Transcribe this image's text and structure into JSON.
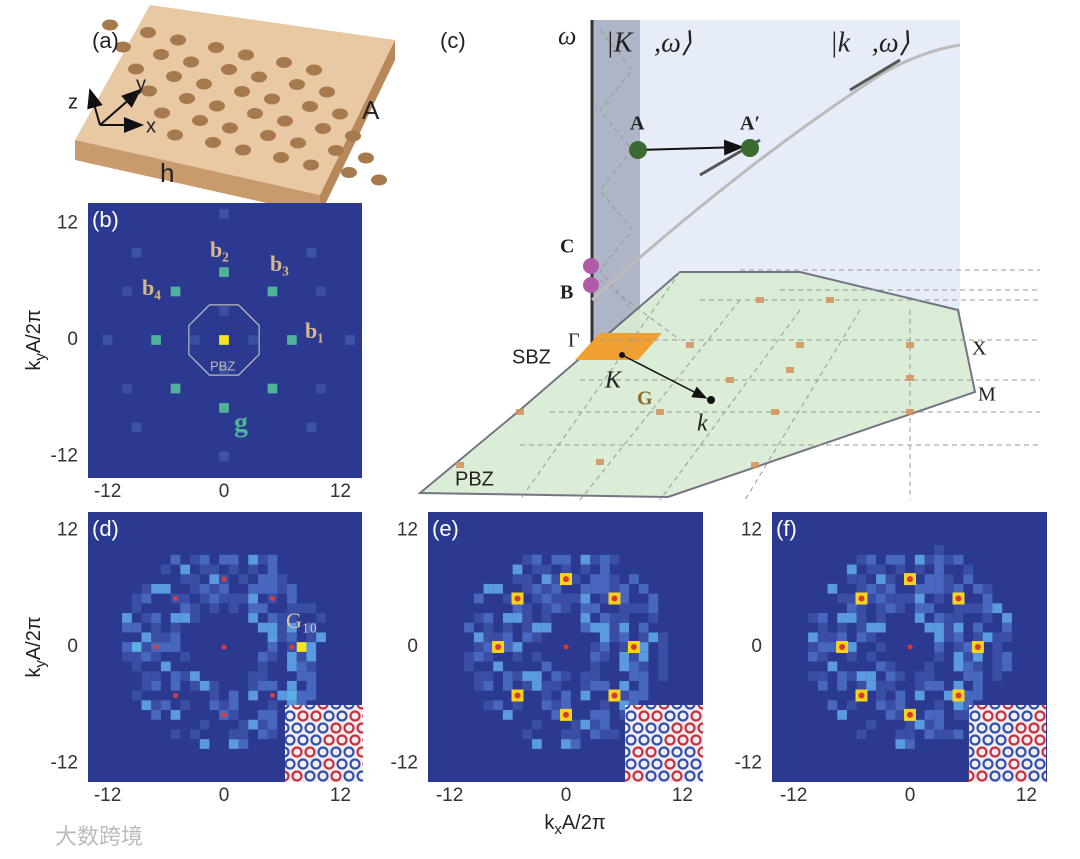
{
  "panels": {
    "a": {
      "label": "(a)",
      "axes": [
        "z",
        "y",
        "x"
      ],
      "period": "A",
      "height": "h"
    },
    "b": {
      "label": "(b)",
      "xticks": [
        -12,
        0,
        12
      ],
      "yticks": [
        -12,
        0,
        12
      ],
      "vectors": [
        "b₁",
        "b₂",
        "b₃",
        "b₄"
      ],
      "zone": "PBZ",
      "g": "g"
    },
    "c": {
      "label": "(c)",
      "omega": "ω",
      "state_K": "|K⃗,ω⟩",
      "state_k": "|k⃗,ω⟩",
      "points": [
        "A",
        "A′",
        "C",
        "B"
      ],
      "gamma": "Γ",
      "sbz": "SBZ",
      "K": "K⃗",
      "G": "G",
      "k": "k⃗",
      "X": "X",
      "M": "M",
      "pbz": "PBZ"
    },
    "d": {
      "label": "(d)",
      "xticks": [
        -12,
        0,
        12
      ],
      "yticks": [
        -12,
        0,
        12
      ],
      "annotation": "G₁₀"
    },
    "e": {
      "label": "(e)",
      "xticks": [
        -12,
        0,
        12
      ],
      "yticks": [
        -12,
        0,
        12
      ]
    },
    "f": {
      "label": "(f)",
      "xticks": [
        -12,
        0,
        12
      ],
      "yticks": [
        -12,
        0,
        12
      ]
    }
  },
  "axis_labels": {
    "x": {
      "main": "k",
      "sub": "x",
      "rest": "A/2π"
    },
    "y": {
      "main": "k",
      "sub": "y",
      "rest": "A/2π"
    }
  },
  "watermark": "大数跨境"
}
